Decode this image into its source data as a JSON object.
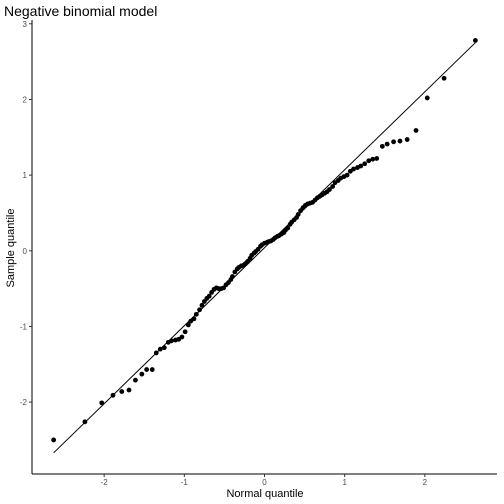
{
  "chart_data": {
    "type": "scatter",
    "title": "Negative binomial model",
    "xlabel": "Normal quantile",
    "ylabel": "Sample quantile",
    "xlim": [
      -2.9,
      2.9
    ],
    "ylim": [
      -2.95,
      3.05
    ],
    "xticks": [
      -2,
      -1,
      0,
      1,
      2
    ],
    "xtick_labels": [
      "-2",
      "-1",
      "0",
      "1",
      "2"
    ],
    "yticks": [
      -2,
      -1,
      0,
      1,
      2,
      3
    ],
    "ytick_labels": [
      "-2",
      "-1",
      "0",
      "1",
      "2",
      "3"
    ],
    "grid": false,
    "legend": "none",
    "reference_line": {
      "x": [
        -2.63,
        2.63
      ],
      "y": [
        -2.67,
        2.75
      ]
    },
    "series": [
      {
        "x": [
          -2.63,
          -2.24,
          -2.03,
          -1.89,
          -1.78,
          -1.69,
          -1.61,
          -1.53,
          -1.47,
          -1.4,
          -1.35,
          -1.3,
          -1.25,
          -1.2,
          -1.16,
          -1.11,
          -1.07,
          -1.03,
          -0.99,
          -0.95,
          -0.92,
          -0.88,
          -0.85,
          -0.81,
          -0.78,
          -0.75,
          -0.72,
          -0.69,
          -0.66,
          -0.63,
          -0.6,
          -0.57,
          -0.54,
          -0.51,
          -0.48,
          -0.45,
          -0.42,
          -0.4,
          -0.37,
          -0.34,
          -0.32,
          -0.29,
          -0.26,
          -0.24,
          -0.21,
          -0.18,
          -0.16,
          -0.13,
          -0.11,
          -0.08,
          -0.05,
          -0.03,
          0.0,
          0.03,
          0.05,
          0.08,
          0.11,
          0.13,
          0.16,
          0.18,
          0.21,
          0.24,
          0.26,
          0.29,
          0.32,
          0.34,
          0.37,
          0.4,
          0.42,
          0.45,
          0.48,
          0.51,
          0.54,
          0.57,
          0.6,
          0.63,
          0.66,
          0.69,
          0.72,
          0.75,
          0.78,
          0.81,
          0.85,
          0.88,
          0.92,
          0.95,
          0.99,
          1.03,
          1.07,
          1.11,
          1.16,
          1.2,
          1.25,
          1.3,
          1.35,
          1.4,
          1.47,
          1.53,
          1.61,
          1.69,
          1.78,
          1.89,
          2.03,
          2.24,
          2.63
        ],
        "y": [
          -2.5,
          -2.26,
          -2.01,
          -1.91,
          -1.86,
          -1.84,
          -1.71,
          -1.63,
          -1.57,
          -1.57,
          -1.35,
          -1.3,
          -1.28,
          -1.21,
          -1.19,
          -1.18,
          -1.17,
          -1.14,
          -1.07,
          -0.98,
          -0.93,
          -0.9,
          -0.84,
          -0.78,
          -0.72,
          -0.67,
          -0.63,
          -0.6,
          -0.55,
          -0.51,
          -0.49,
          -0.5,
          -0.5,
          -0.49,
          -0.45,
          -0.42,
          -0.38,
          -0.34,
          -0.28,
          -0.24,
          -0.22,
          -0.2,
          -0.19,
          -0.17,
          -0.14,
          -0.1,
          -0.06,
          -0.03,
          -0.01,
          0.02,
          0.06,
          0.08,
          0.1,
          0.11,
          0.12,
          0.13,
          0.15,
          0.17,
          0.19,
          0.2,
          0.22,
          0.24,
          0.27,
          0.3,
          0.35,
          0.38,
          0.41,
          0.44,
          0.48,
          0.53,
          0.57,
          0.6,
          0.62,
          0.63,
          0.64,
          0.67,
          0.7,
          0.72,
          0.74,
          0.76,
          0.78,
          0.81,
          0.85,
          0.9,
          0.93,
          0.96,
          0.98,
          1.0,
          1.05,
          1.08,
          1.1,
          1.12,
          1.15,
          1.19,
          1.21,
          1.22,
          1.38,
          1.41,
          1.44,
          1.45,
          1.47,
          1.59,
          2.02,
          2.28,
          2.78
        ]
      }
    ]
  }
}
